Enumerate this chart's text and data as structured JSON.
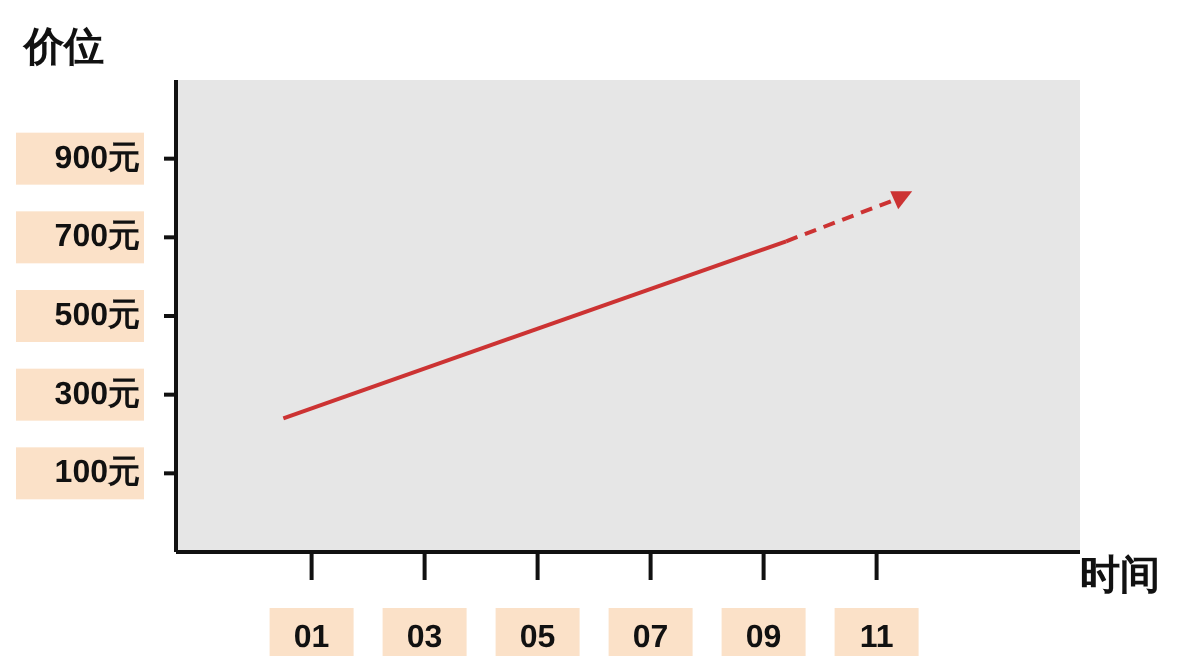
{
  "chart_data": {
    "type": "line",
    "ylabel": "价位",
    "xlabel": "时间",
    "xlim": [
      -1.4,
      14.6
    ],
    "xticks": [
      {
        "value": 1,
        "label": "01"
      },
      {
        "value": 3,
        "label": "03"
      },
      {
        "value": 5,
        "label": "05"
      },
      {
        "value": 7,
        "label": "07"
      },
      {
        "value": 9,
        "label": "09"
      },
      {
        "value": 11,
        "label": "11"
      }
    ],
    "ylim": [
      -100,
      1100
    ],
    "yticks": [
      {
        "value": 100,
        "label": "100元"
      },
      {
        "value": 300,
        "label": "300元"
      },
      {
        "value": 500,
        "label": "500元"
      },
      {
        "value": 700,
        "label": "700元"
      },
      {
        "value": 900,
        "label": "900元"
      }
    ],
    "grid": false,
    "marker": "none",
    "line_style": "solid",
    "series": [
      {
        "color": "#cc3333",
        "x": [
          0.5,
          9.4
        ],
        "values": [
          240,
          690
        ]
      }
    ]
  }
}
